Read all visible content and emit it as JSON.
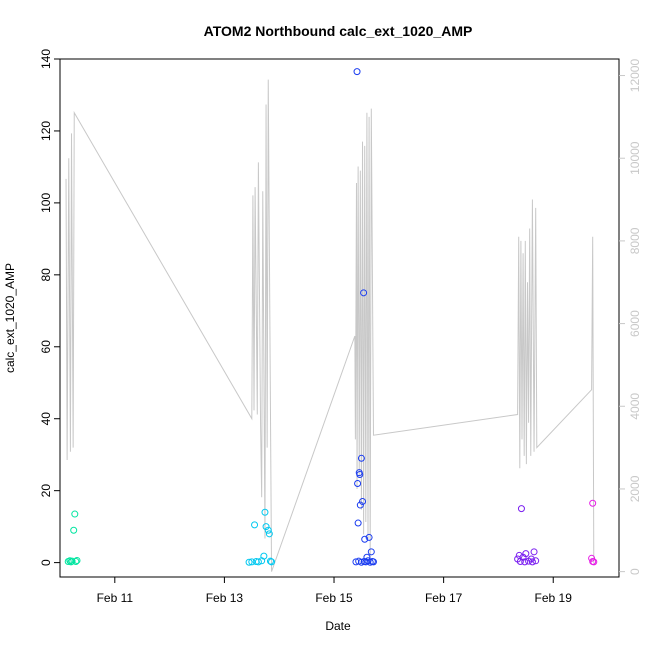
{
  "chart_data": {
    "type": "scatter",
    "title": "ATOM2 Northbound calc_ext_1020_AMP",
    "xlabel": "Date",
    "ylabel": "calc_ext_1020_AMP",
    "x_unit": "day of February",
    "xlim": [
      10.0,
      20.2
    ],
    "ylim": [
      -4,
      140
    ],
    "y_ticks": [
      "0",
      "20",
      "40",
      "60",
      "80",
      "100",
      "120",
      "140"
    ],
    "x_ticks": [
      {
        "value": 11,
        "label": "Feb 11"
      },
      {
        "value": 13,
        "label": "Feb 13"
      },
      {
        "value": 15,
        "label": "Feb 15"
      },
      {
        "value": 17,
        "label": "Feb 17"
      },
      {
        "value": 19,
        "label": "Feb 19"
      }
    ],
    "secondary_axis": {
      "ylim": [
        -130,
        12400
      ],
      "ticks": [
        "0",
        "2000",
        "4000",
        "6000",
        "8000",
        "10000",
        "12000"
      ],
      "color": "#c8c8c8"
    },
    "points_color_scale": "day of February mapped from green-cyan to blue to magenta",
    "points": [
      {
        "x": 10.15,
        "y": 0.3,
        "color": "#00e5a0"
      },
      {
        "x": 10.18,
        "y": 0.5,
        "color": "#00e5a0"
      },
      {
        "x": 10.2,
        "y": 0.2,
        "color": "#00e5a0"
      },
      {
        "x": 10.22,
        "y": 0.4,
        "color": "#00e5a0"
      },
      {
        "x": 10.25,
        "y": 9.0,
        "color": "#00e5a0"
      },
      {
        "x": 10.27,
        "y": 13.5,
        "color": "#00e5a0"
      },
      {
        "x": 10.29,
        "y": 0.3,
        "color": "#00e5a0"
      },
      {
        "x": 10.31,
        "y": 0.6,
        "color": "#00e5a0"
      },
      {
        "x": 13.45,
        "y": 0.1,
        "color": "#00c8f0"
      },
      {
        "x": 13.5,
        "y": 0.2,
        "color": "#00c8f0"
      },
      {
        "x": 13.55,
        "y": 10.5,
        "color": "#00c8f0"
      },
      {
        "x": 13.58,
        "y": 0.3,
        "color": "#00c8f0"
      },
      {
        "x": 13.62,
        "y": 0.2,
        "color": "#00c8f0"
      },
      {
        "x": 13.68,
        "y": 0.5,
        "color": "#00c8f0"
      },
      {
        "x": 13.72,
        "y": 1.8,
        "color": "#00c8f0"
      },
      {
        "x": 13.74,
        "y": 14.0,
        "color": "#00c8f0"
      },
      {
        "x": 13.76,
        "y": 10.0,
        "color": "#00c8f0"
      },
      {
        "x": 13.8,
        "y": 9.0,
        "color": "#00c8f0"
      },
      {
        "x": 13.82,
        "y": 8.0,
        "color": "#00c8f0"
      },
      {
        "x": 13.84,
        "y": 0.4,
        "color": "#00c8f0"
      },
      {
        "x": 13.86,
        "y": 0.2,
        "color": "#00c8f0"
      },
      {
        "x": 15.42,
        "y": 136.5,
        "color": "#1a3cf0"
      },
      {
        "x": 15.43,
        "y": 22.0,
        "color": "#1a3cf0"
      },
      {
        "x": 15.44,
        "y": 11.0,
        "color": "#1a3cf0"
      },
      {
        "x": 15.46,
        "y": 25.0,
        "color": "#1a3cf0"
      },
      {
        "x": 15.47,
        "y": 24.5,
        "color": "#1a3cf0"
      },
      {
        "x": 15.48,
        "y": 16.0,
        "color": "#1a3cf0"
      },
      {
        "x": 15.5,
        "y": 29.0,
        "color": "#1a3cf0"
      },
      {
        "x": 15.52,
        "y": 17.0,
        "color": "#1a3cf0"
      },
      {
        "x": 15.54,
        "y": 75.0,
        "color": "#1a3cf0"
      },
      {
        "x": 15.56,
        "y": 6.5,
        "color": "#1a3cf0"
      },
      {
        "x": 15.6,
        "y": 1.5,
        "color": "#1a3cf0"
      },
      {
        "x": 15.64,
        "y": 7.0,
        "color": "#1a3cf0"
      },
      {
        "x": 15.68,
        "y": 3.0,
        "color": "#1a3cf0"
      },
      {
        "x": 15.4,
        "y": 0.2,
        "color": "#1a3cf0"
      },
      {
        "x": 15.45,
        "y": 0.4,
        "color": "#1a3cf0"
      },
      {
        "x": 15.5,
        "y": 0.1,
        "color": "#1a3cf0"
      },
      {
        "x": 15.55,
        "y": 0.3,
        "color": "#1a3cf0"
      },
      {
        "x": 15.58,
        "y": 0.2,
        "color": "#1a3cf0"
      },
      {
        "x": 15.62,
        "y": 0.5,
        "color": "#1a3cf0"
      },
      {
        "x": 15.66,
        "y": 0.1,
        "color": "#1a3cf0"
      },
      {
        "x": 15.7,
        "y": 0.3,
        "color": "#1a3cf0"
      },
      {
        "x": 15.72,
        "y": 0.2,
        "color": "#1a3cf0"
      },
      {
        "x": 18.35,
        "y": 1.0,
        "color": "#7a1ef0"
      },
      {
        "x": 18.38,
        "y": 2.0,
        "color": "#7a1ef0"
      },
      {
        "x": 18.4,
        "y": 0.3,
        "color": "#7a1ef0"
      },
      {
        "x": 18.42,
        "y": 15.0,
        "color": "#7a1ef0"
      },
      {
        "x": 18.45,
        "y": 1.5,
        "color": "#7a1ef0"
      },
      {
        "x": 18.48,
        "y": 0.2,
        "color": "#7a1ef0"
      },
      {
        "x": 18.5,
        "y": 2.5,
        "color": "#7a1ef0"
      },
      {
        "x": 18.55,
        "y": 0.4,
        "color": "#7a1ef0"
      },
      {
        "x": 18.6,
        "y": 1.0,
        "color": "#7a1ef0"
      },
      {
        "x": 18.62,
        "y": 0.2,
        "color": "#7a1ef0"
      },
      {
        "x": 18.65,
        "y": 3.0,
        "color": "#7a1ef0"
      },
      {
        "x": 18.68,
        "y": 0.5,
        "color": "#7a1ef0"
      },
      {
        "x": 19.72,
        "y": 16.5,
        "color": "#e61ee6"
      },
      {
        "x": 19.7,
        "y": 1.2,
        "color": "#e61ee6"
      },
      {
        "x": 19.72,
        "y": 0.3,
        "color": "#e61ee6"
      },
      {
        "x": 19.74,
        "y": 0.2,
        "color": "#e61ee6"
      }
    ],
    "line_series": {
      "axis": "secondary",
      "color": "#c8c8c8",
      "points": [
        [
          10.11,
          9500
        ],
        [
          10.13,
          2700
        ],
        [
          10.16,
          10000
        ],
        [
          10.19,
          2900
        ],
        [
          10.21,
          10600
        ],
        [
          10.24,
          3000
        ],
        [
          10.26,
          11100
        ],
        [
          13.5,
          3700
        ],
        [
          13.52,
          9100
        ],
        [
          13.54,
          3900
        ],
        [
          13.56,
          9300
        ],
        [
          13.6,
          3800
        ],
        [
          13.62,
          9900
        ],
        [
          13.66,
          3500
        ],
        [
          13.68,
          1800
        ],
        [
          13.7,
          9200
        ],
        [
          13.74,
          800
        ],
        [
          13.76,
          11300
        ],
        [
          13.78,
          3000
        ],
        [
          13.8,
          11900
        ],
        [
          13.86,
          0
        ],
        [
          15.38,
          5700
        ],
        [
          15.39,
          3200
        ],
        [
          15.41,
          9400
        ],
        [
          15.42,
          2000
        ],
        [
          15.44,
          9800
        ],
        [
          15.46,
          2300
        ],
        [
          15.48,
          9700
        ],
        [
          15.5,
          1500
        ],
        [
          15.52,
          10400
        ],
        [
          15.54,
          900
        ],
        [
          15.56,
          10300
        ],
        [
          15.58,
          1200
        ],
        [
          15.6,
          11100
        ],
        [
          15.62,
          800
        ],
        [
          15.64,
          11000
        ],
        [
          15.66,
          300
        ],
        [
          15.68,
          11200
        ],
        [
          15.72,
          3300
        ],
        [
          18.35,
          3800
        ],
        [
          18.37,
          8100
        ],
        [
          18.39,
          2500
        ],
        [
          18.41,
          8000
        ],
        [
          18.43,
          3200
        ],
        [
          18.45,
          7700
        ],
        [
          18.47,
          2800
        ],
        [
          18.49,
          8000
        ],
        [
          18.51,
          2600
        ],
        [
          18.53,
          7000
        ],
        [
          18.55,
          3600
        ],
        [
          18.57,
          8300
        ],
        [
          18.59,
          2800
        ],
        [
          18.62,
          9000
        ],
        [
          18.65,
          2900
        ],
        [
          18.68,
          8800
        ],
        [
          18.7,
          3000
        ],
        [
          19.7,
          4400
        ],
        [
          19.72,
          8100
        ],
        [
          19.74,
          200
        ]
      ]
    },
    "grid": false,
    "legend": "none"
  }
}
